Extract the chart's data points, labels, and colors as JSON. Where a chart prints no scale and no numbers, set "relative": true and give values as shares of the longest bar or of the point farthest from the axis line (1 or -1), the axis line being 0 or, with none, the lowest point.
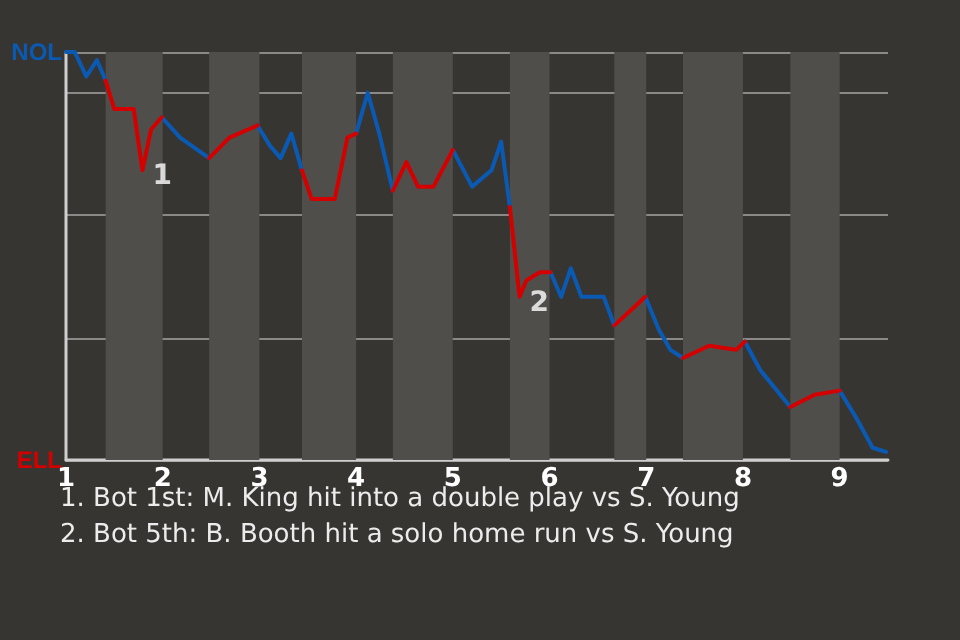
{
  "chart_data": {
    "type": "line",
    "relative": true,
    "x": [
      1,
      1.09,
      1.21,
      1.32,
      1.41,
      1.5,
      1.7,
      1.79,
      1.88,
      1.99,
      2.18,
      2.48,
      2.69,
      2.98,
      3.11,
      3.22,
      3.33,
      3.44,
      3.54,
      3.78,
      3.91,
      4,
      4.12,
      4.24,
      4.38,
      4.52,
      4.64,
      4.8,
      5,
      5.2,
      5.4,
      5.5,
      5.59,
      5.69,
      5.76,
      5.9,
      6.01,
      6.12,
      6.22,
      6.33,
      6.56,
      6.67,
      6.9,
      6.99,
      7.13,
      7.25,
      7.38,
      7.65,
      7.93,
      8.02,
      8.18,
      8.49,
      8.74,
      9,
      9.18,
      9.34,
      9.48
    ],
    "series": [
      {
        "name": "NOL",
        "color": "#0a5ab4",
        "values": [
          1,
          1,
          0.94,
          0.98,
          0.93,
          null,
          null,
          null,
          null,
          0.84,
          0.79,
          0.74,
          null,
          0.82,
          0.77,
          0.74,
          0.8,
          0.71,
          null,
          null,
          null,
          0.8,
          0.9,
          0.8,
          0.66,
          null,
          null,
          null,
          0.76,
          0.67,
          0.71,
          0.78,
          0.62,
          null,
          null,
          null,
          0.46,
          0.4,
          0.47,
          0.4,
          0.4,
          0.33,
          null,
          0.4,
          0.32,
          0.27,
          0.25,
          null,
          null,
          0.29,
          0.22,
          0.13,
          null,
          0.17,
          0.1,
          0.03,
          0.02
        ]
      },
      {
        "name": "ELL",
        "color": "#d40000",
        "values": [
          null,
          null,
          null,
          null,
          0.93,
          0.86,
          0.86,
          0.71,
          0.81,
          0.84,
          null,
          0.74,
          0.79,
          0.82,
          null,
          null,
          null,
          0.71,
          0.64,
          0.64,
          0.79,
          0.8,
          null,
          null,
          0.66,
          0.73,
          0.67,
          0.67,
          0.76,
          null,
          null,
          null,
          0.62,
          0.4,
          0.44,
          0.46,
          0.46,
          null,
          null,
          null,
          null,
          0.33,
          0.38,
          0.4,
          null,
          null,
          0.25,
          0.28,
          0.27,
          0.29,
          null,
          0.13,
          0.16,
          0.17,
          null,
          null,
          null
        ]
      }
    ],
    "xlim": [
      1,
      9.5
    ],
    "xticks": [
      1,
      2,
      3,
      4,
      5,
      6,
      7,
      8,
      9
    ],
    "grid": "y",
    "marker": "none",
    "bands": [
      {
        "axis": "x",
        "from": 1.41,
        "to": 2,
        "color": "#4f4e4b"
      },
      {
        "axis": "x",
        "from": 2.48,
        "to": 3,
        "color": "#4f4e4b"
      },
      {
        "axis": "x",
        "from": 3.44,
        "to": 4,
        "color": "#4f4e4b"
      },
      {
        "axis": "x",
        "from": 4.38,
        "to": 5,
        "color": "#4f4e4b"
      },
      {
        "axis": "x",
        "from": 5.59,
        "to": 6,
        "color": "#4f4e4b"
      },
      {
        "axis": "x",
        "from": 6.67,
        "to": 7,
        "color": "#4f4e4b"
      },
      {
        "axis": "x",
        "from": 7.38,
        "to": 8,
        "color": "#4f4e4b"
      },
      {
        "axis": "x",
        "from": 8.49,
        "to": 9,
        "color": "#4f4e4b"
      }
    ],
    "annotations": [
      {
        "text": "1",
        "x": 1.79,
        "y": 0.71
      },
      {
        "text": "2",
        "x": 5.69,
        "y": 0.4
      },
      "1. Bot 1st: M. King hit into a double play vs S. Young",
      "2. Bot 5th: B. Booth hit a solo home run vs S. Young"
    ]
  }
}
